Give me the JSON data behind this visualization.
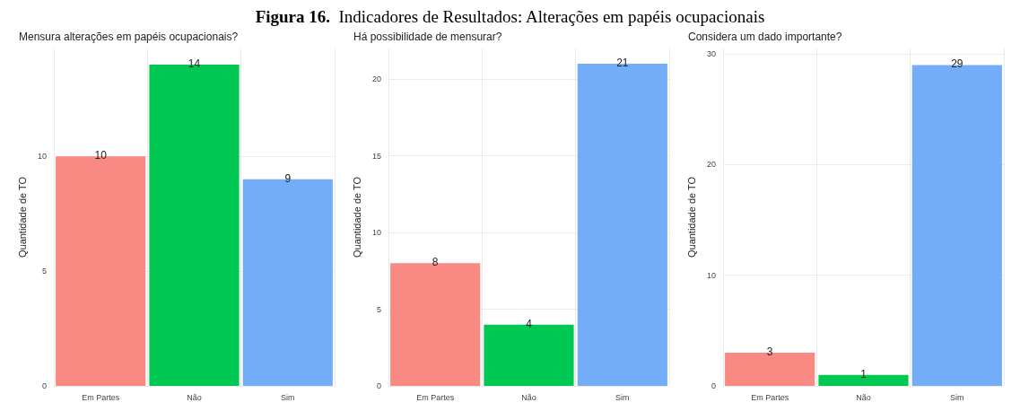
{
  "chart_data": [
    {
      "type": "other",
      "title": "Figura 16.  Indicadores de Resultados: Alterações em papéis ocupacionais"
    },
    {
      "type": "bar",
      "title": "Mensura alterações em papéis ocupacionais?",
      "ylabel": "Quantidade de TO",
      "categories": [
        "Em Partes",
        "Não",
        "Sim"
      ],
      "values": [
        10,
        14,
        9
      ],
      "colors": [
        "#f98a83",
        "#00c853",
        "#74adf7"
      ],
      "ylim": [
        0,
        14.7
      ],
      "yticks": [
        0,
        5,
        10
      ],
      "grid": true,
      "data_labels": true
    },
    {
      "type": "bar",
      "title": "Há possibilidade de mensurar?",
      "ylabel": "Quantidade de TO",
      "categories": [
        "Em Partes",
        "Não",
        "Sim"
      ],
      "values": [
        8,
        4,
        21
      ],
      "colors": [
        "#f98a83",
        "#00c853",
        "#74adf7"
      ],
      "ylim": [
        0,
        22
      ],
      "yticks": [
        0,
        5,
        10,
        15,
        20
      ],
      "grid": true,
      "data_labels": true
    },
    {
      "type": "bar",
      "title": "Considera um dado importante?",
      "ylabel": "Quantidade de TO",
      "categories": [
        "Em Partes",
        "Não",
        "Sim"
      ],
      "values": [
        3,
        1,
        29
      ],
      "colors": [
        "#f98a83",
        "#00c853",
        "#74adf7"
      ],
      "ylim": [
        0,
        30.5
      ],
      "yticks": [
        0,
        10,
        20,
        30
      ],
      "grid": true,
      "data_labels": true
    }
  ]
}
